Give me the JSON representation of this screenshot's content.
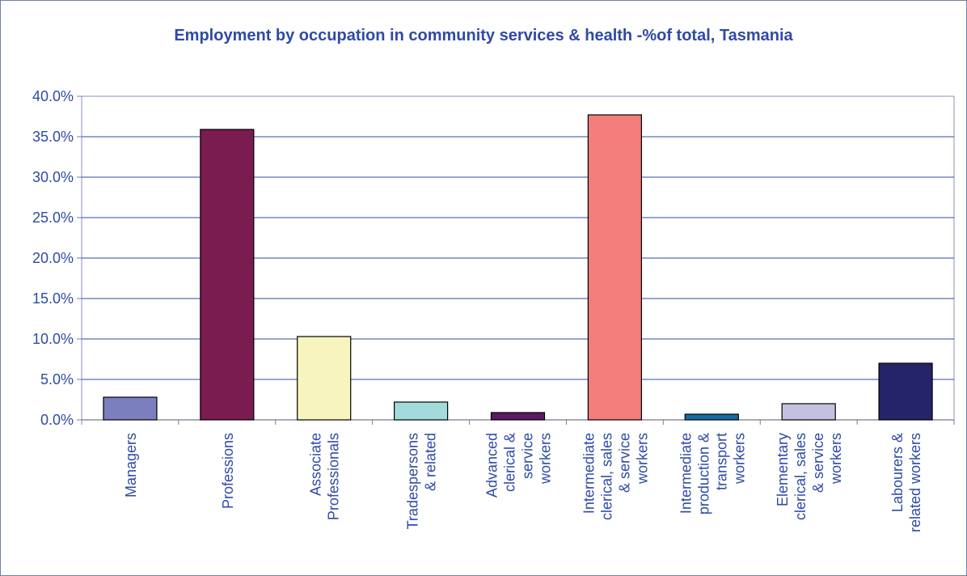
{
  "chart_data": {
    "type": "bar",
    "title": "Employment by occupation in community services & health -%of total, Tasmania",
    "xlabel": "",
    "ylabel": "",
    "categories": [
      "Managers",
      "Professions",
      "Associate Professionals",
      "Tradespersons & related",
      "Advanced clerical & service workers",
      "Intermediate clerical, sales & service workers",
      "Intermediate production & transport workers",
      "Elementary clerical, sales & service workers",
      "Labourers & related workers"
    ],
    "category_label_lines": [
      [
        "Managers"
      ],
      [
        "Professions"
      ],
      [
        "Associate",
        "Professionals"
      ],
      [
        "Tradespersons",
        "& related"
      ],
      [
        "Advanced",
        "clerical &",
        "service",
        "workers"
      ],
      [
        "Intermediate",
        "clerical, sales",
        "& service",
        "workers"
      ],
      [
        "Intermediate",
        "production &",
        "transport",
        "workers"
      ],
      [
        "Elementary",
        "clerical, sales",
        "& service",
        "workers"
      ],
      [
        "Labourers &",
        "related workers"
      ]
    ],
    "values": [
      2.8,
      35.9,
      10.3,
      2.2,
      0.9,
      37.7,
      0.7,
      2.0,
      7.0
    ],
    "colors": [
      "#7b7fbd",
      "#7b1c50",
      "#f7f5bd",
      "#a3dbdc",
      "#5b1a61",
      "#f27d7b",
      "#1a6aa6",
      "#c2c2e0",
      "#25246a"
    ],
    "ylim": [
      0,
      40
    ],
    "yticks": [
      0,
      5,
      10,
      15,
      20,
      25,
      30,
      35,
      40
    ],
    "ytick_labels": [
      "0.0%",
      "5.0%",
      "10.0%",
      "15.0%",
      "20.0%",
      "25.0%",
      "30.0%",
      "35.0%",
      "40.0%"
    ],
    "grid": true,
    "legend": "none"
  }
}
